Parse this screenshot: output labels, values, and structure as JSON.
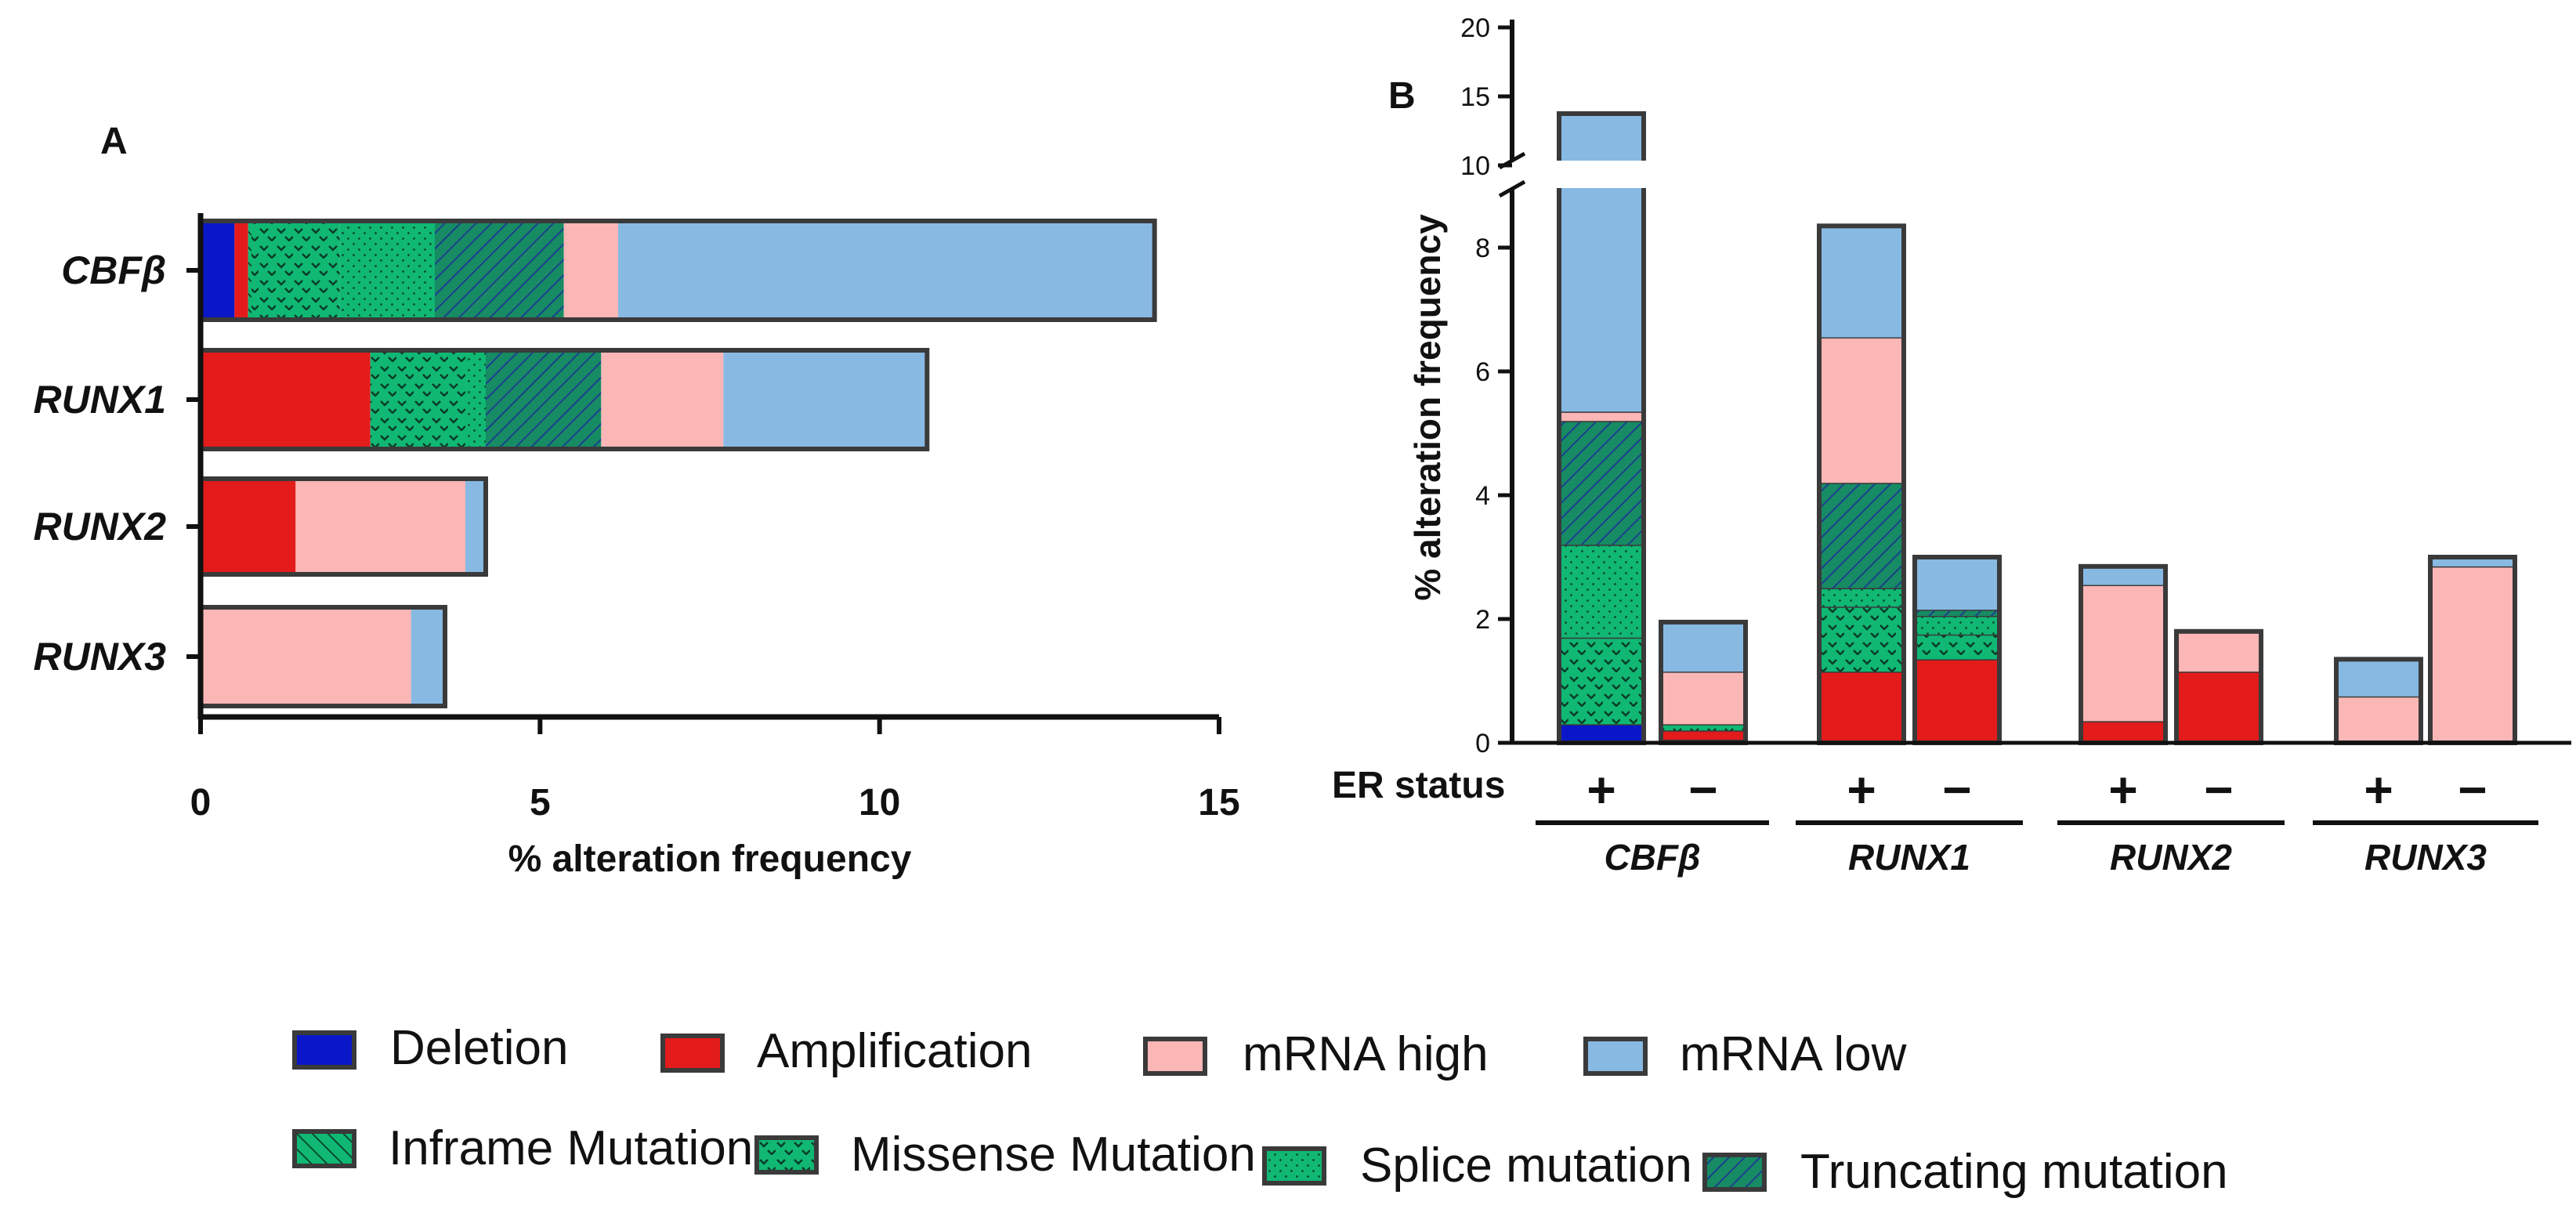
{
  "colors": {
    "deletion": "#0a17c8",
    "amplification": "#e31b1b",
    "mrna_high": "#fbb6b6",
    "mrna_low": "#88b9e3",
    "mutation_green": "#10b873",
    "truncating_green": "#178b63",
    "border": "#3a3a3a"
  },
  "legend": [
    {
      "key": "deletion",
      "label": "Deletion",
      "pattern": "solid-blue"
    },
    {
      "key": "amplification",
      "label": "Amplification",
      "pattern": "solid-red"
    },
    {
      "key": "mrna_high",
      "label": "mRNA high",
      "pattern": "solid-pink"
    },
    {
      "key": "mrna_low",
      "label": "mRNA low",
      "pattern": "solid-lightblue"
    },
    {
      "key": "inframe",
      "label": "Inframe Mutation",
      "pattern": "hatch-inframe"
    },
    {
      "key": "missense",
      "label": "Missense Mutation",
      "pattern": "chevron-missense"
    },
    {
      "key": "splice",
      "label": "Splice mutation",
      "pattern": "dots-splice"
    },
    {
      "key": "truncating",
      "label": "Truncating mutation",
      "pattern": "hatch-truncating"
    }
  ],
  "chart_data": [
    {
      "panel": "A",
      "type": "bar",
      "orientation": "horizontal",
      "stacked": true,
      "xlabel": "% alteration frequency",
      "xlim": [
        0,
        15
      ],
      "xticks": [
        "0",
        "5",
        "10",
        "15"
      ],
      "categories": [
        "CBFβ",
        "RUNX1",
        "RUNX2",
        "RUNX3"
      ],
      "series": [
        {
          "name": "Deletion",
          "key": "deletion",
          "values": [
            0.5,
            0,
            0,
            0
          ]
        },
        {
          "name": "Amplification",
          "key": "amplification",
          "values": [
            0.2,
            2.5,
            1.4,
            0
          ]
        },
        {
          "name": "Inframe Mutation",
          "key": "inframe",
          "values": [
            0.05,
            0,
            0,
            0
          ]
        },
        {
          "name": "Missense Mutation",
          "key": "missense",
          "values": [
            1.3,
            1.4,
            0,
            0
          ]
        },
        {
          "name": "Splice mutation",
          "key": "splice",
          "values": [
            1.4,
            0.3,
            0,
            0
          ]
        },
        {
          "name": "Truncating mutation",
          "key": "truncating",
          "values": [
            1.9,
            1.7,
            0,
            0
          ]
        },
        {
          "name": "mRNA high",
          "key": "mrna_high",
          "values": [
            0.8,
            1.8,
            2.5,
            3.1
          ]
        },
        {
          "name": "mRNA low",
          "key": "mrna_low",
          "values": [
            7.9,
            3.0,
            0.3,
            0.5
          ]
        }
      ]
    },
    {
      "panel": "B",
      "type": "bar",
      "orientation": "vertical",
      "stacked": true,
      "ylabel": "% alteration frequency",
      "ylim": [
        0,
        20
      ],
      "axis_break": [
        9.5,
        10
      ],
      "yticks_lower": [
        "0",
        "2",
        "4",
        "6",
        "8"
      ],
      "yticks_upper": [
        "10",
        "15",
        "20"
      ],
      "er_label": "ER status",
      "er_levels": [
        "+",
        "−"
      ],
      "genes": [
        "CBFβ",
        "RUNX1",
        "RUNX2",
        "RUNX3"
      ],
      "categories": [
        "CBFβ ER+",
        "CBFβ ER−",
        "RUNX1 ER+",
        "RUNX1 ER−",
        "RUNX2 ER+",
        "RUNX2 ER−",
        "RUNX3 ER+",
        "RUNX3 ER−"
      ],
      "series": [
        {
          "name": "Deletion",
          "key": "deletion",
          "values": [
            0.3,
            0.05,
            0,
            0,
            0,
            0,
            0,
            0
          ]
        },
        {
          "name": "Amplification",
          "key": "amplification",
          "values": [
            0,
            0.15,
            1.15,
            1.35,
            0.35,
            1.15,
            0,
            0
          ]
        },
        {
          "name": "Missense Mutation",
          "key": "missense",
          "values": [
            1.4,
            0.1,
            1.05,
            0.4,
            0,
            0,
            0,
            0
          ]
        },
        {
          "name": "Splice mutation",
          "key": "splice",
          "values": [
            1.5,
            0,
            0.3,
            0.3,
            0,
            0,
            0,
            0
          ]
        },
        {
          "name": "Truncating mutation",
          "key": "truncating",
          "values": [
            2.0,
            0,
            1.7,
            0.1,
            0,
            0,
            0,
            0
          ]
        },
        {
          "name": "mRNA high",
          "key": "mrna_high",
          "values": [
            0.15,
            0.85,
            2.35,
            0,
            2.2,
            0.65,
            0.75,
            2.85
          ]
        },
        {
          "name": "mRNA low",
          "key": "mrna_low",
          "values": [
            8.4,
            0.8,
            1.8,
            0.85,
            0.3,
            0,
            0.6,
            0.15
          ]
        }
      ]
    }
  ]
}
